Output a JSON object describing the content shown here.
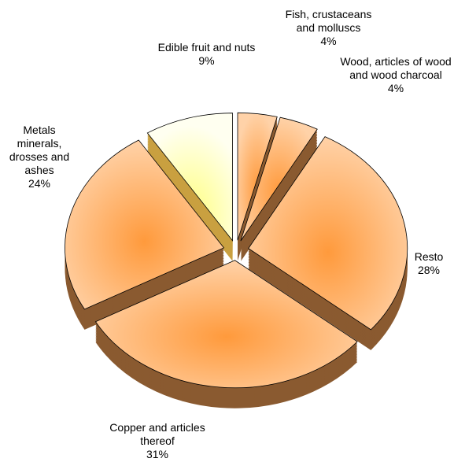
{
  "chart_data": {
    "type": "pie",
    "categories": [
      "Edible fruit and nuts",
      "Fish, crustaceans and molluscs",
      "Wood, articles of wood and wood charcoal",
      "Resto",
      "Copper and articles thereof",
      "Metals minerals, drosses and ashes"
    ],
    "values": [
      9,
      4,
      4,
      28,
      31,
      24
    ],
    "value_labels": [
      "9%",
      "4%",
      "4%",
      "28%",
      "31%",
      "24%"
    ],
    "colors": [
      "#ffffa0",
      "#ffb870",
      "#ffb870",
      "#ffa860",
      "#ffa860",
      "#ffa860"
    ]
  }
}
